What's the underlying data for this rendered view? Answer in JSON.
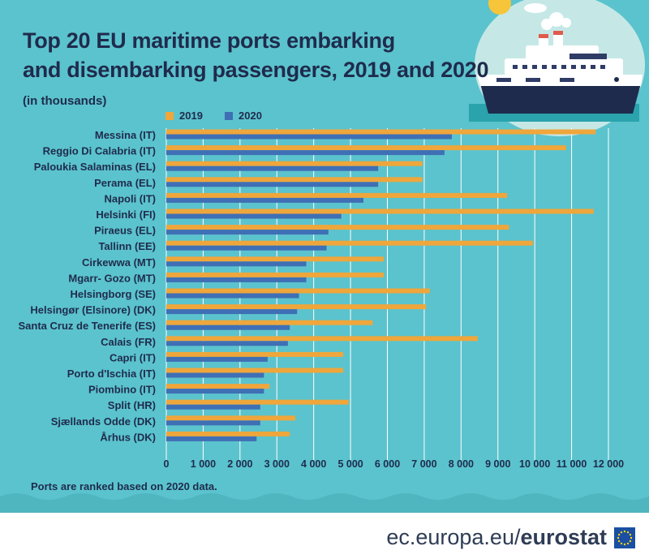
{
  "title_line1": "Top 20 EU maritime ports embarking",
  "title_line2": "and disembarking passengers, 2019 and 2020",
  "subtitle": "(in thousands)",
  "note": "Ports are ranked based on 2020 data.",
  "footer": {
    "domain": "ec.europa.eu/",
    "brand": "eurostat"
  },
  "colors": {
    "bg": "#5bc3cd",
    "s2019": "#efa63b",
    "s2020": "#3f6fb5",
    "text": "#1f2b4d",
    "grid": "#ffffff"
  },
  "chart_data": {
    "type": "bar",
    "orientation": "horizontal",
    "title": "Top 20 EU maritime ports embarking and disembarking passengers, 2019 and 2020",
    "subtitle": "(in thousands)",
    "categories": [
      "Messina (IT)",
      "Reggio Di Calabria (IT)",
      "Paloukia Salaminas (EL)",
      "Perama (EL)",
      "Napoli (IT)",
      "Helsinki (FI)",
      "Piraeus (EL)",
      "Tallinn (EE)",
      "Cirkewwa (MT)",
      "Mgarr- Gozo (MT)",
      "Helsingborg (SE)",
      "Helsingør (Elsinore) (DK)",
      "Santa Cruz de Tenerife (ES)",
      "Calais (FR)",
      "Capri (IT)",
      "Porto d'Ischia (IT)",
      "Piombino (IT)",
      "Split (HR)",
      "Sjællands Odde (DK)",
      "Århus (DK)"
    ],
    "series": [
      {
        "name": "2019",
        "values": [
          11650,
          10850,
          6950,
          6950,
          9250,
          11600,
          9300,
          9950,
          5900,
          5900,
          7150,
          7050,
          5600,
          8450,
          4800,
          4800,
          2800,
          4950,
          3500,
          3350
        ]
      },
      {
        "name": "2020",
        "values": [
          7750,
          7550,
          5750,
          5750,
          5350,
          4750,
          4400,
          4350,
          3800,
          3800,
          3600,
          3550,
          3350,
          3300,
          2750,
          2650,
          2650,
          2550,
          2550,
          2450
        ]
      }
    ],
    "xlim": [
      0,
      12000
    ],
    "xticks": [
      0,
      1000,
      2000,
      3000,
      4000,
      5000,
      6000,
      7000,
      8000,
      9000,
      10000,
      11000,
      12000
    ],
    "xtick_labels": [
      "0",
      "1 000",
      "2 000",
      "3 000",
      "4 000",
      "5 000",
      "6 000",
      "7 000",
      "8 000",
      "9 000",
      "10 000",
      "11 000",
      "12 000"
    ],
    "grid": true,
    "legend": "top-left"
  }
}
